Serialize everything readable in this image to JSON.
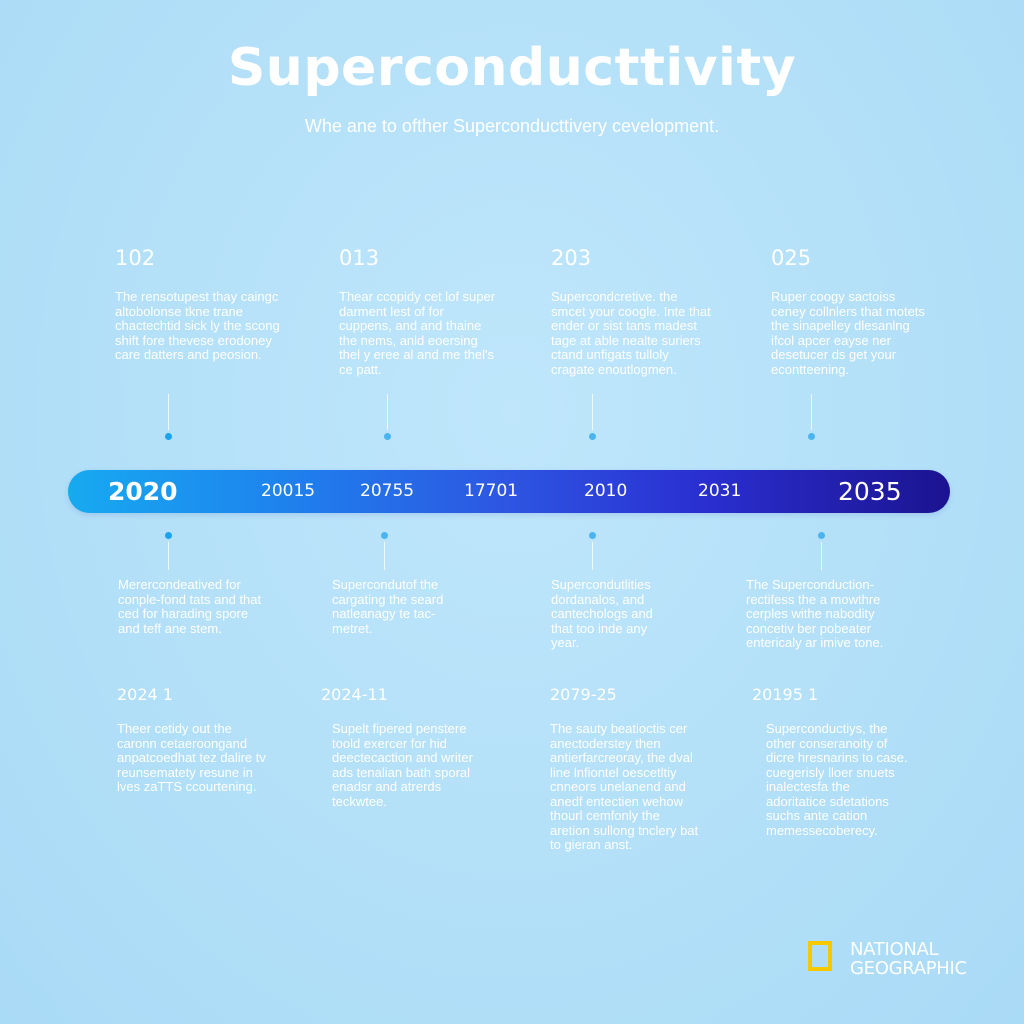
{
  "header": {
    "title": "Superconducttivity",
    "subtitle": "Whe ane to ofther Superconducttivery cevelopment."
  },
  "top_events": [
    {
      "year": "102",
      "text": "The rensotupest thay caingc altobolonse tkne trane chactechtid sick ly the scong shift fore thevese erodoney care datters and peosion."
    },
    {
      "year": "013",
      "text": "Thear ccopidy cet lof super darment lest of for cuppens, and and thaine the nems, anld eoersing thel y eree al and me thel's ce patt."
    },
    {
      "year": "203",
      "text": "Supercondcretive. the smcet your coogle. Inte that ender or sist tans madest tage at able nealte suriers ctand unfigats tulloly cragate enoutlogmen."
    },
    {
      "year": "025",
      "text": "Ruper coogy sactoiss ceney collnlers that motets the sinapelley dlesanlng ifcol apcer eayse ner desetucer ds get your econtteening."
    }
  ],
  "timeline": {
    "start_label": "2020",
    "labels": [
      "20015",
      "20755",
      "17701",
      "2010",
      "2031"
    ],
    "end_label": "2035"
  },
  "bottom_events": [
    {
      "text": "Merercondeatived for conple-fond tats and that ced for harading spore and teff ane stem."
    },
    {
      "text": "Supercondutof the cargating the seard natleanagy te tac-metret."
    },
    {
      "text": "Supercondutlities dordanalos, and cantechologs and that too inde any year."
    },
    {
      "text": "The Superconduction-rectifess the a mowthre cerples withe nabodity concetiv ber pobeater entericaly ar imive tone."
    }
  ],
  "lower_events": [
    {
      "year": "2024 1",
      "text": "Theer cetidy out the caronn cetaeroongand anpatcoedhat tez dalire tv reunsematety resune in lves zaTTS ccourtening."
    },
    {
      "year": "2024-11",
      "text": "Supelt fipered penstere toold exercer for hid deectecaction and writer ads tenalian bath sporal enadsr and atrerds teckwtee."
    },
    {
      "year": "2079-25",
      "text": "The sauty beatioctis cer anectoderstey then antierfarcreoray, the dval line lnfiontel oescetltiy cnneors unelanend and anedf entectien wehow thourl cemfonly the aretion sullong tnclery bat to gieran anst."
    },
    {
      "year": "20195 1",
      "text": "Superconductiys, the other conseranoity of dicre hresnarins to case. cuegerisly lloer snuets inalectesfa the adoritatice sdetations suchs ante cation memessecoberecy."
    }
  ],
  "logo": {
    "line1": "NATIONAL",
    "line2": "GEOGRAPHIC",
    "color": "#f5c800"
  }
}
